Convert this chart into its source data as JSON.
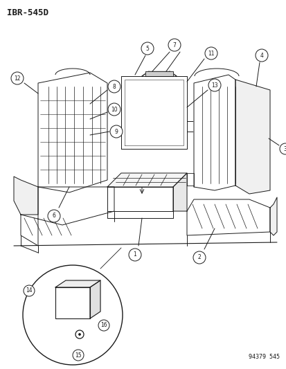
{
  "title": "IBR-545D",
  "footer": "94379 545",
  "bg_color": "#ffffff",
  "line_color": "#1a1a1a",
  "title_fs": 9,
  "label_fs": 6,
  "footer_fs": 6,
  "lw": 0.7
}
